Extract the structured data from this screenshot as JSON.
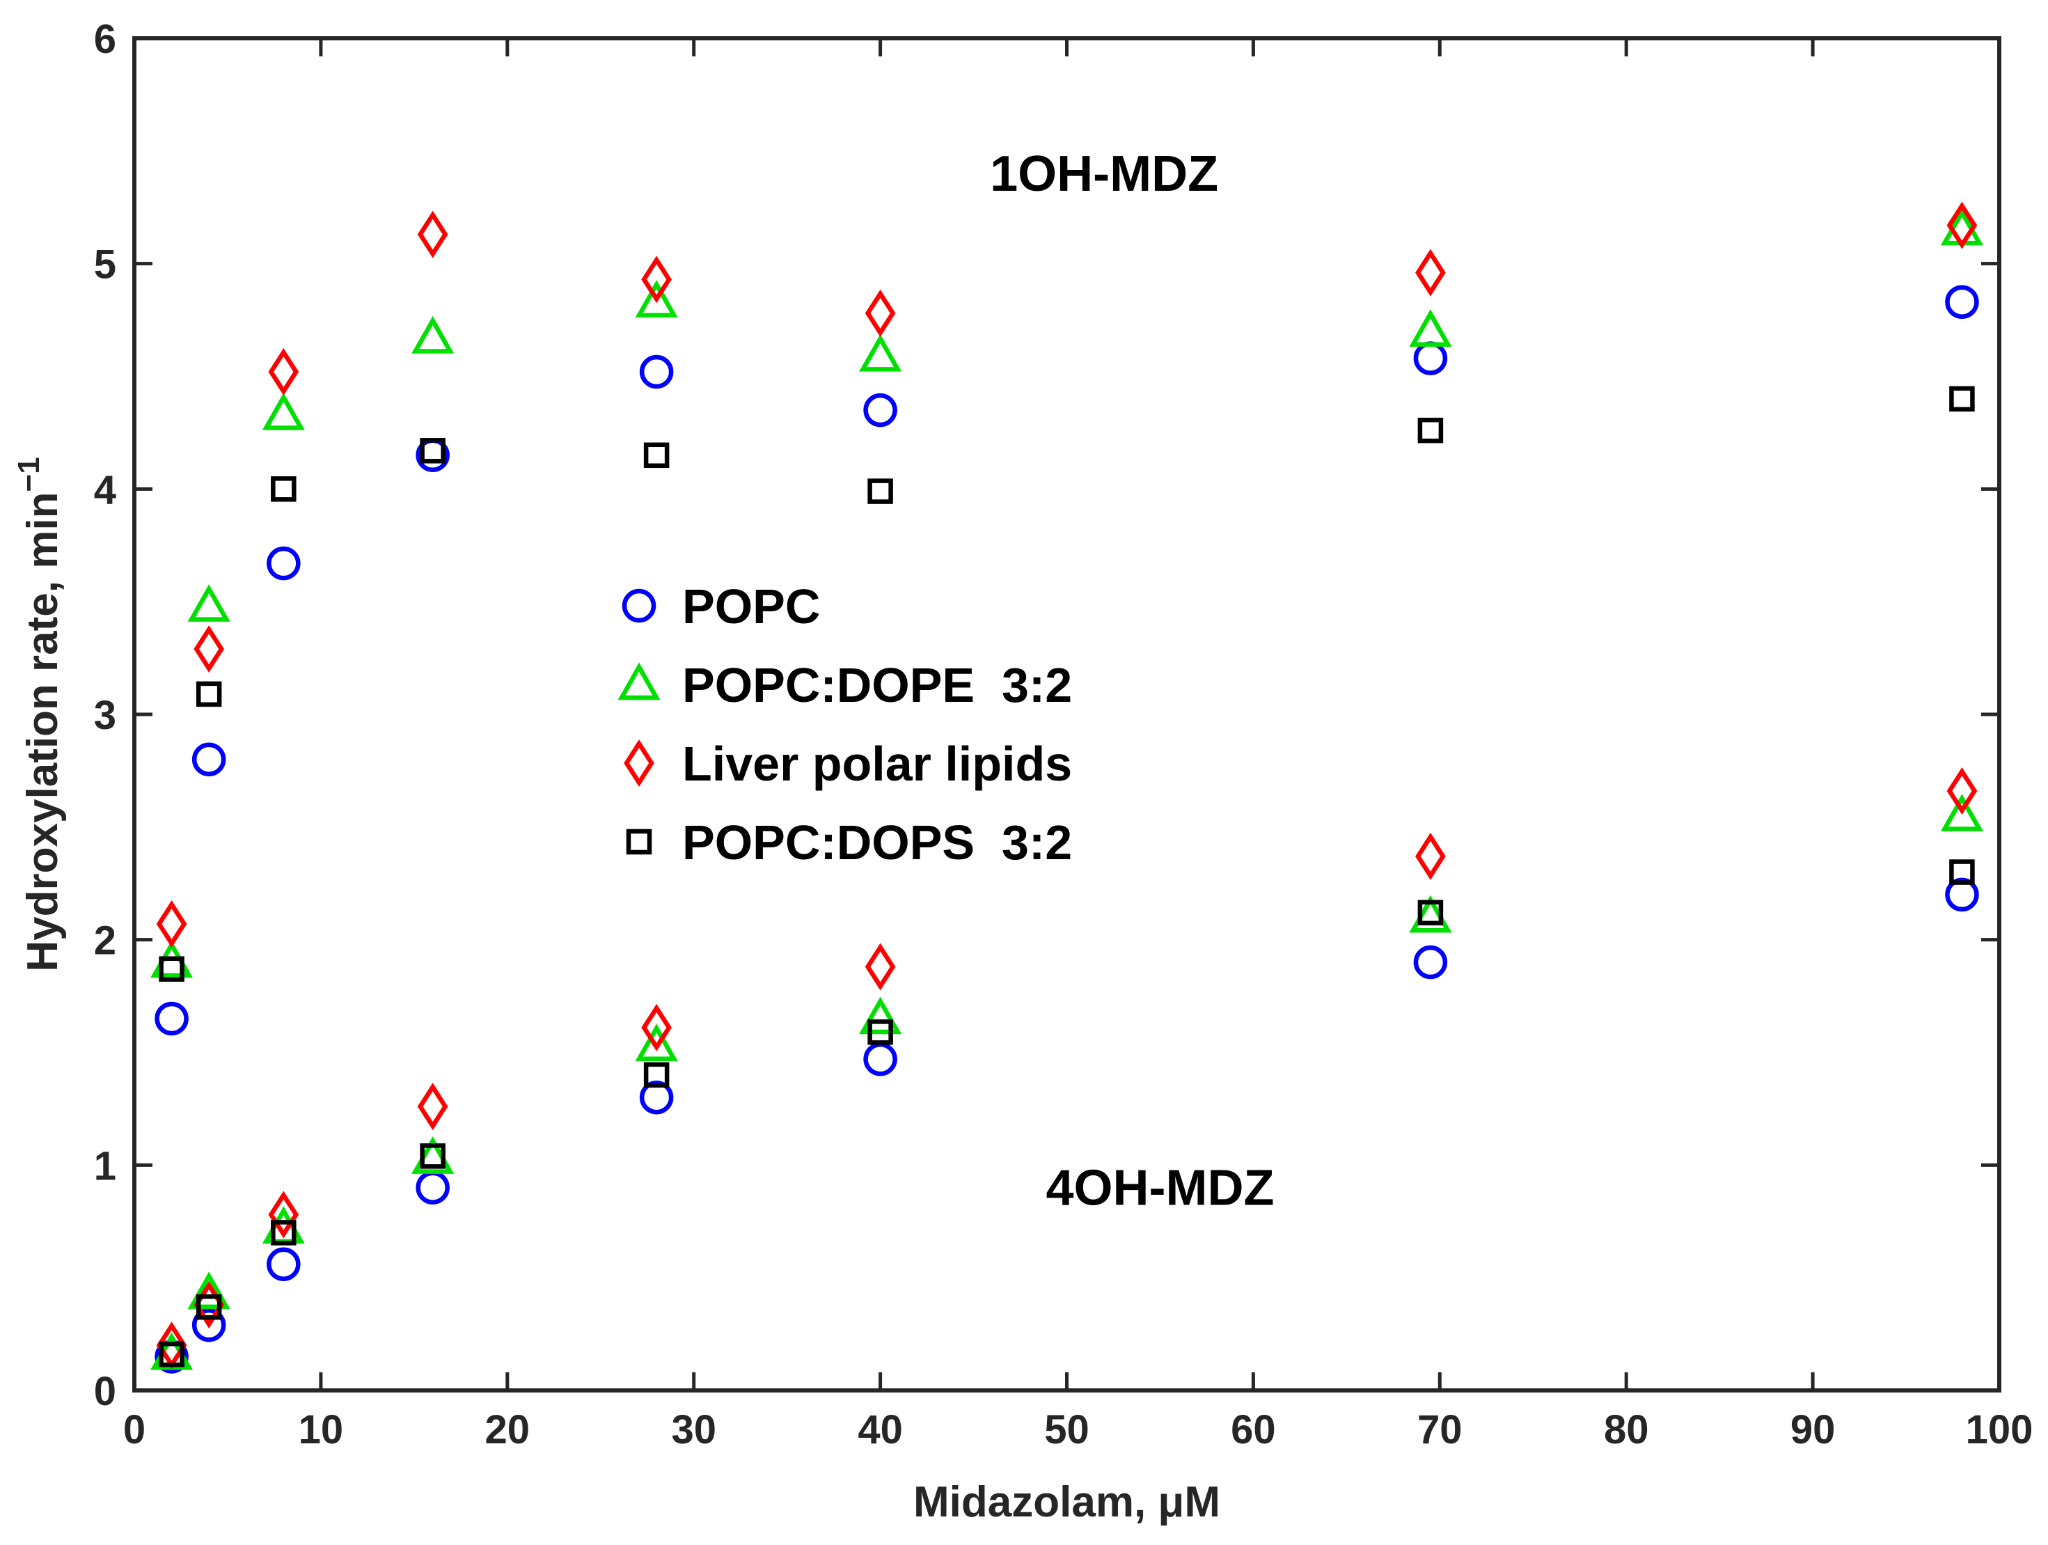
{
  "chart_data": {
    "type": "scatter",
    "title": "",
    "xlabel": "Midazolam, μM",
    "ylabel_main": "Hydroxylation rate, min",
    "ylabel_sup": "−1",
    "xlim": [
      0,
      100
    ],
    "ylim": [
      0,
      6
    ],
    "xticks": [
      0,
      10,
      20,
      30,
      40,
      50,
      60,
      70,
      80,
      90,
      100
    ],
    "yticks": [
      0,
      1,
      2,
      3,
      4,
      5,
      6
    ],
    "grid": false,
    "legend_position": "center",
    "x": [
      2,
      4,
      8,
      16,
      28,
      40,
      69.5,
      98
    ],
    "series": [
      {
        "name": "POPC",
        "marker": "circle",
        "color": "#0000ff",
        "values_1OH": [
          1.65,
          2.8,
          3.67,
          4.15,
          4.52,
          4.35,
          4.58,
          4.83
        ],
        "values_4OH": [
          0.15,
          0.29,
          0.56,
          0.9,
          1.3,
          1.47,
          1.9,
          2.2
        ]
      },
      {
        "name": "POPC:DOPE  3:2",
        "marker": "triangle",
        "color": "#00e000",
        "values_1OH": [
          1.9,
          3.48,
          4.33,
          4.67,
          4.83,
          4.59,
          4.7,
          5.15
        ],
        "values_4OH": [
          0.16,
          0.43,
          0.72,
          1.03,
          1.53,
          1.65,
          2.1,
          2.55
        ]
      },
      {
        "name": "Liver polar lipids",
        "marker": "diamond",
        "color": "#ff0000",
        "values_1OH": [
          2.07,
          3.29,
          4.52,
          5.13,
          4.93,
          4.78,
          4.96,
          5.17
        ],
        "values_4OH": [
          0.2,
          0.38,
          0.78,
          1.26,
          1.61,
          1.88,
          2.37,
          2.66
        ]
      },
      {
        "name": "POPC:DOPS  3:2",
        "marker": "square",
        "color": "#000000",
        "values_1OH": [
          1.87,
          3.09,
          4.0,
          4.17,
          4.15,
          3.99,
          4.26,
          4.4
        ],
        "values_4OH": [
          0.16,
          0.37,
          0.7,
          1.04,
          1.4,
          1.59,
          2.12,
          2.3
        ]
      }
    ],
    "annotations": [
      {
        "text": "1OH-MDZ",
        "x": 52,
        "y": 5.4
      },
      {
        "text": "4OH-MDZ",
        "x": 55,
        "y": 0.9
      }
    ]
  }
}
